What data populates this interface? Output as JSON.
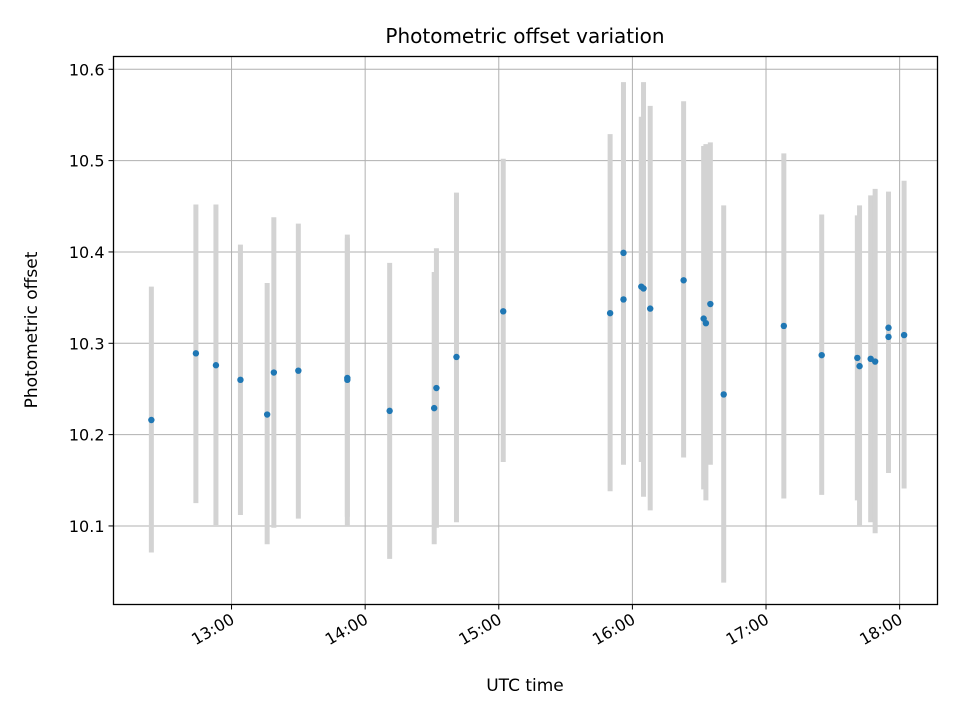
{
  "chart_data": {
    "type": "scatter",
    "title": "Photometric offset variation",
    "xlabel": "UTC time",
    "ylabel": "Photometric offset",
    "xlim": [
      "12:07",
      "18:17"
    ],
    "ylim": [
      10.014,
      10.614
    ],
    "x_ticks": [
      "13:00",
      "14:00",
      "15:00",
      "16:00",
      "17:00",
      "18:00"
    ],
    "y_ticks": [
      "10.1",
      "10.2",
      "10.3",
      "10.4",
      "10.5",
      "10.6"
    ],
    "grid": true,
    "colors": {
      "point": "#1f77b4",
      "errorbar": "#d3d3d3",
      "grid": "#b0b0b0"
    },
    "points": [
      {
        "x": "12:24",
        "y": 10.216,
        "lo": 10.071,
        "hi": 10.362
      },
      {
        "x": "12:44",
        "y": 10.289,
        "lo": 10.125,
        "hi": 10.452
      },
      {
        "x": "12:53",
        "y": 10.276,
        "lo": 10.101,
        "hi": 10.452
      },
      {
        "x": "13:04",
        "y": 10.26,
        "lo": 10.112,
        "hi": 10.408
      },
      {
        "x": "13:16",
        "y": 10.222,
        "lo": 10.08,
        "hi": 10.366
      },
      {
        "x": "13:19",
        "y": 10.268,
        "lo": 10.098,
        "hi": 10.438
      },
      {
        "x": "13:30",
        "y": 10.27,
        "lo": 10.108,
        "hi": 10.431
      },
      {
        "x": "13:52",
        "y": 10.262,
        "lo": 10.1,
        "hi": 10.419
      },
      {
        "x": "13:52",
        "y": 10.26,
        "lo": 10.11,
        "hi": 10.415
      },
      {
        "x": "14:11",
        "y": 10.226,
        "lo": 10.064,
        "hi": 10.388
      },
      {
        "x": "14:31",
        "y": 10.229,
        "lo": 10.08,
        "hi": 10.378
      },
      {
        "x": "14:32",
        "y": 10.251,
        "lo": 10.098,
        "hi": 10.404
      },
      {
        "x": "14:41",
        "y": 10.285,
        "lo": 10.104,
        "hi": 10.465
      },
      {
        "x": "15:02",
        "y": 10.335,
        "lo": 10.17,
        "hi": 10.502
      },
      {
        "x": "15:50",
        "y": 10.333,
        "lo": 10.138,
        "hi": 10.529
      },
      {
        "x": "15:56",
        "y": 10.348,
        "lo": 10.167,
        "hi": 10.53
      },
      {
        "x": "15:56",
        "y": 10.399,
        "lo": 10.214,
        "hi": 10.586
      },
      {
        "x": "16:04",
        "y": 10.362,
        "lo": 10.17,
        "hi": 10.548
      },
      {
        "x": "16:05",
        "y": 10.36,
        "lo": 10.132,
        "hi": 10.586
      },
      {
        "x": "16:08",
        "y": 10.338,
        "lo": 10.117,
        "hi": 10.56
      },
      {
        "x": "16:23",
        "y": 10.369,
        "lo": 10.175,
        "hi": 10.565
      },
      {
        "x": "16:32",
        "y": 10.327,
        "lo": 10.14,
        "hi": 10.516
      },
      {
        "x": "16:33",
        "y": 10.322,
        "lo": 10.128,
        "hi": 10.518
      },
      {
        "x": "16:35",
        "y": 10.343,
        "lo": 10.167,
        "hi": 10.52
      },
      {
        "x": "16:41",
        "y": 10.244,
        "lo": 10.038,
        "hi": 10.451
      },
      {
        "x": "17:08",
        "y": 10.319,
        "lo": 10.13,
        "hi": 10.508
      },
      {
        "x": "17:25",
        "y": 10.287,
        "lo": 10.134,
        "hi": 10.441
      },
      {
        "x": "17:41",
        "y": 10.284,
        "lo": 10.128,
        "hi": 10.44
      },
      {
        "x": "17:42",
        "y": 10.275,
        "lo": 10.1,
        "hi": 10.451
      },
      {
        "x": "17:47",
        "y": 10.283,
        "lo": 10.104,
        "hi": 10.462
      },
      {
        "x": "17:49",
        "y": 10.28,
        "lo": 10.092,
        "hi": 10.469
      },
      {
        "x": "17:55",
        "y": 10.317,
        "lo": 10.17,
        "hi": 10.457
      },
      {
        "x": "17:55",
        "y": 10.307,
        "lo": 10.158,
        "hi": 10.466
      },
      {
        "x": "18:02",
        "y": 10.309,
        "lo": 10.141,
        "hi": 10.478
      }
    ]
  }
}
